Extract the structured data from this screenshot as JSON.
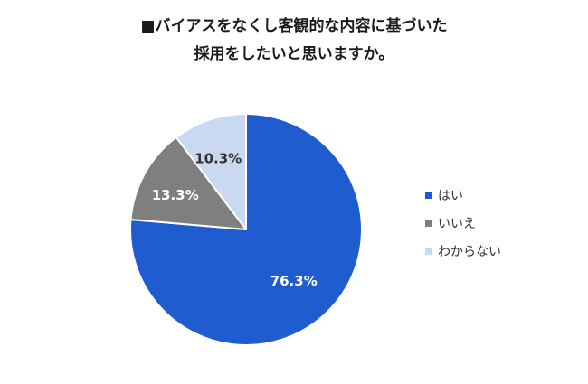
{
  "chart_data": {
    "type": "pie",
    "title": "■バイアスをなくし客観的な内容に基づいた採用をしたいと思いますか。",
    "title_lines": [
      "■バイアスをなくし客観的な内容に基づいた",
      "採用をしたいと思いますか。"
    ],
    "categories": [
      "はい",
      "いいえ",
      "わからない"
    ],
    "values": [
      76.3,
      13.3,
      10.3
    ],
    "labels": [
      "76.3%",
      "13.3%",
      "10.3%"
    ],
    "colors": [
      "#1f5ccf",
      "#7f7f7f",
      "#c9d9f1"
    ],
    "label_colors": [
      "#ffffff",
      "#ffffff",
      "#333333"
    ],
    "start_angle_deg": 0,
    "direction": "clockwise",
    "legend_position": "right"
  }
}
